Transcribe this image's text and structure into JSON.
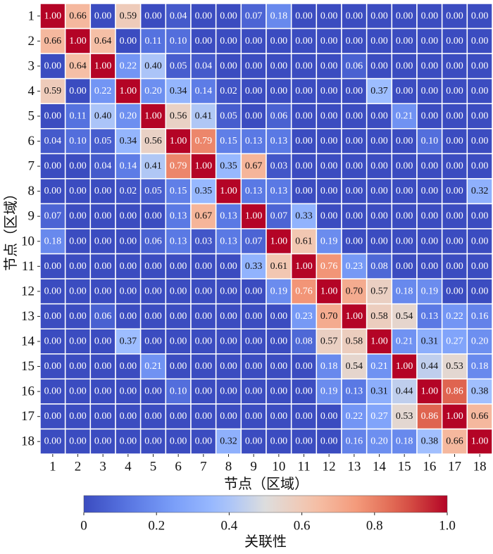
{
  "chart_data": {
    "type": "heatmap",
    "xlabel": "节点（区域）",
    "ylabel": "节点（区域）",
    "x_categories": [
      "1",
      "2",
      "3",
      "4",
      "5",
      "6",
      "7",
      "8",
      "9",
      "10",
      "11",
      "12",
      "13",
      "14",
      "15",
      "16",
      "17",
      "18"
    ],
    "y_categories": [
      "1",
      "2",
      "3",
      "4",
      "5",
      "6",
      "7",
      "8",
      "9",
      "10",
      "11",
      "12",
      "13",
      "14",
      "15",
      "16",
      "17",
      "18"
    ],
    "colorbar": {
      "label": "关联性",
      "range": [
        0,
        1
      ],
      "ticks": [
        "0",
        "0.2",
        "0.4",
        "0.6",
        "0.8",
        "1.0"
      ],
      "colormap": "coolwarm",
      "orientation": "horizontal",
      "placement": "bottom"
    },
    "colors": {
      "low": "#3b4cc0",
      "mid": "#dddddd",
      "high": "#b40426"
    },
    "values": [
      [
        1.0,
        0.66,
        0.0,
        0.59,
        0.0,
        0.04,
        0.0,
        0.0,
        0.07,
        0.18,
        0.0,
        0.0,
        0.0,
        0.0,
        0.0,
        0.0,
        0.0,
        0.0
      ],
      [
        0.66,
        1.0,
        0.64,
        0.0,
        0.11,
        0.1,
        0.0,
        0.0,
        0.0,
        0.0,
        0.0,
        0.0,
        0.0,
        0.0,
        0.0,
        0.0,
        0.0,
        0.0
      ],
      [
        0.0,
        0.64,
        1.0,
        0.22,
        0.4,
        0.05,
        0.04,
        0.0,
        0.0,
        0.0,
        0.0,
        0.0,
        0.06,
        0.0,
        0.0,
        0.0,
        0.0,
        0.0
      ],
      [
        0.59,
        0.0,
        0.22,
        1.0,
        0.2,
        0.34,
        0.14,
        0.02,
        0.0,
        0.0,
        0.0,
        0.0,
        0.0,
        0.37,
        0.0,
        0.0,
        0.0,
        0.0
      ],
      [
        0.0,
        0.11,
        0.4,
        0.2,
        1.0,
        0.56,
        0.41,
        0.05,
        0.0,
        0.06,
        0.0,
        0.0,
        0.0,
        0.0,
        0.21,
        0.0,
        0.0,
        0.0
      ],
      [
        0.04,
        0.1,
        0.05,
        0.34,
        0.56,
        1.0,
        0.79,
        0.15,
        0.13,
        0.13,
        0.0,
        0.0,
        0.0,
        0.0,
        0.0,
        0.1,
        0.0,
        0.0
      ],
      [
        0.0,
        0.0,
        0.04,
        0.14,
        0.41,
        0.79,
        1.0,
        0.35,
        0.67,
        0.03,
        0.0,
        0.0,
        0.0,
        0.0,
        0.0,
        0.0,
        0.0,
        0.0
      ],
      [
        0.0,
        0.0,
        0.0,
        0.02,
        0.05,
        0.15,
        0.35,
        1.0,
        0.13,
        0.13,
        0.0,
        0.0,
        0.0,
        0.0,
        0.0,
        0.0,
        0.0,
        0.32
      ],
      [
        0.07,
        0.0,
        0.0,
        0.0,
        0.0,
        0.13,
        0.67,
        0.13,
        1.0,
        0.07,
        0.33,
        0.0,
        0.0,
        0.0,
        0.0,
        0.0,
        0.0,
        0.0
      ],
      [
        0.18,
        0.0,
        0.0,
        0.0,
        0.06,
        0.13,
        0.03,
        0.13,
        0.07,
        1.0,
        0.61,
        0.19,
        0.0,
        0.0,
        0.0,
        0.0,
        0.0,
        0.0
      ],
      [
        0.0,
        0.0,
        0.0,
        0.0,
        0.0,
        0.0,
        0.0,
        0.0,
        0.33,
        0.61,
        1.0,
        0.76,
        0.23,
        0.08,
        0.0,
        0.0,
        0.0,
        0.0
      ],
      [
        0.0,
        0.0,
        0.0,
        0.0,
        0.0,
        0.0,
        0.0,
        0.0,
        0.0,
        0.19,
        0.76,
        1.0,
        0.7,
        0.57,
        0.18,
        0.19,
        0.0,
        0.0
      ],
      [
        0.0,
        0.0,
        0.06,
        0.0,
        0.0,
        0.0,
        0.0,
        0.0,
        0.0,
        0.0,
        0.23,
        0.7,
        1.0,
        0.58,
        0.54,
        0.13,
        0.22,
        0.16
      ],
      [
        0.0,
        0.0,
        0.0,
        0.37,
        0.0,
        0.0,
        0.0,
        0.0,
        0.0,
        0.0,
        0.08,
        0.57,
        0.58,
        1.0,
        0.21,
        0.31,
        0.27,
        0.2
      ],
      [
        0.0,
        0.0,
        0.0,
        0.0,
        0.21,
        0.0,
        0.0,
        0.0,
        0.0,
        0.0,
        0.0,
        0.18,
        0.54,
        0.21,
        1.0,
        0.44,
        0.53,
        0.18
      ],
      [
        0.0,
        0.0,
        0.0,
        0.0,
        0.0,
        0.1,
        0.0,
        0.0,
        0.0,
        0.0,
        0.0,
        0.19,
        0.13,
        0.31,
        0.44,
        1.0,
        0.86,
        0.38
      ],
      [
        0.0,
        0.0,
        0.0,
        0.0,
        0.0,
        0.0,
        0.0,
        0.0,
        0.0,
        0.0,
        0.0,
        0.0,
        0.22,
        0.27,
        0.53,
        0.86,
        1.0,
        0.66
      ],
      [
        0.0,
        0.0,
        0.0,
        0.0,
        0.0,
        0.0,
        0.0,
        0.32,
        0.0,
        0.0,
        0.0,
        0.0,
        0.16,
        0.2,
        0.18,
        0.38,
        0.66,
        1.0
      ]
    ]
  }
}
